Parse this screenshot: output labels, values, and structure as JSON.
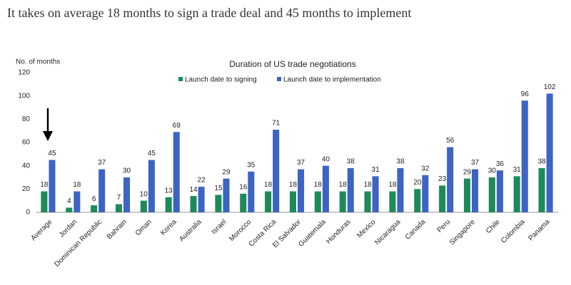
{
  "heading": "It takes on average 18 months to sign a trade deal and 45 months to implement",
  "chart_data": {
    "type": "bar",
    "title": "Duration of US trade negotiations",
    "y_label": "No. of months",
    "categories": [
      "Average",
      "Jordan",
      "Dominican Republic",
      "Bahrain",
      "Oman",
      "Korea",
      "Australia",
      "Israel",
      "Morocco",
      "Costa Rica",
      "El Salvador",
      "Guatemala",
      "Honduras",
      "Mexico",
      "Nicaragua",
      "Canada",
      "Peru",
      "Singapore",
      "Chile",
      "Colombia",
      "Panama"
    ],
    "series": [
      {
        "name": "Launch date to signing",
        "color": "#1e8a5a",
        "values": [
          18,
          4,
          6,
          7,
          10,
          13,
          14,
          15,
          16,
          18,
          18,
          18,
          18,
          18,
          18,
          20,
          23,
          29,
          30,
          31,
          38
        ]
      },
      {
        "name": "Launch date to implementation",
        "color": "#3d63c4",
        "values": [
          45,
          18,
          37,
          30,
          45,
          69,
          22,
          29,
          35,
          71,
          37,
          40,
          38,
          31,
          38,
          32,
          56,
          37,
          36,
          96,
          102
        ]
      }
    ],
    "ylim": [
      0,
      120
    ],
    "yticks": [
      0,
      20,
      40,
      60,
      80,
      100,
      120
    ],
    "grid": false
  }
}
